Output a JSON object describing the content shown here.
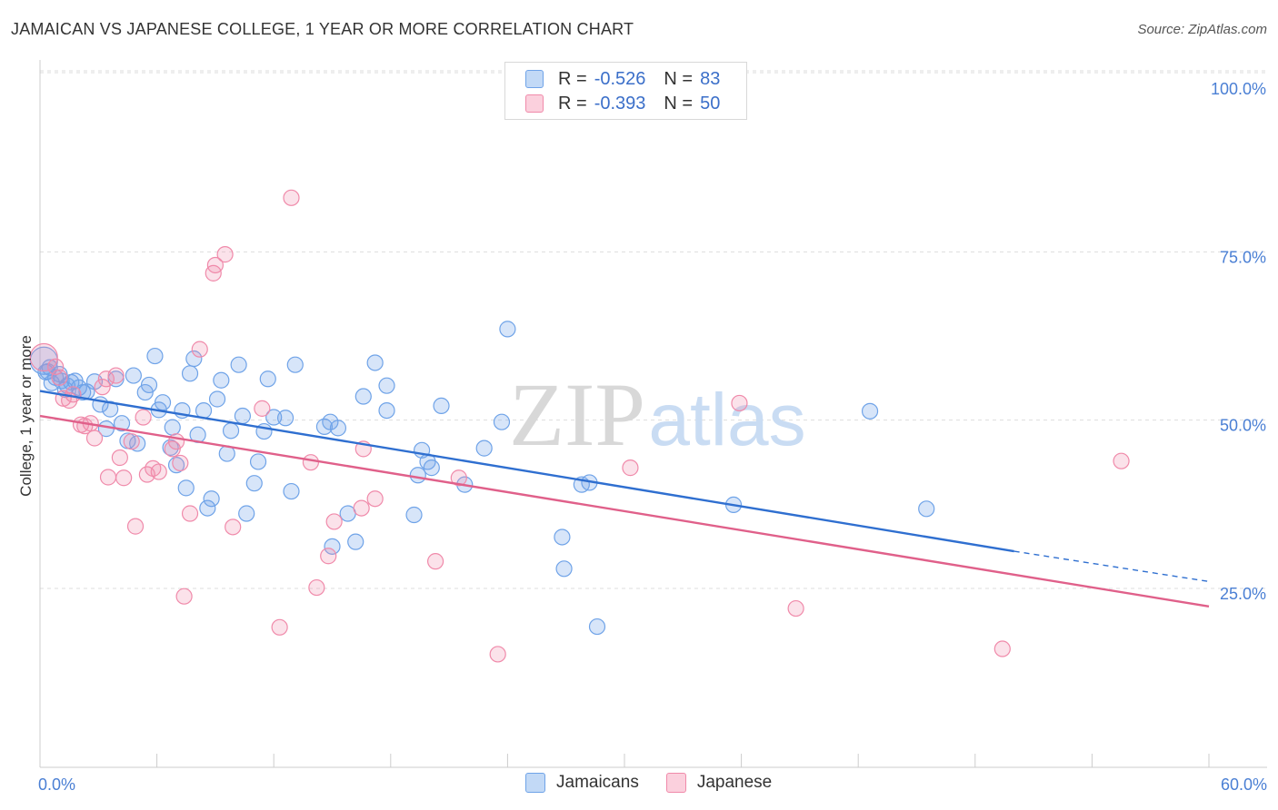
{
  "title": "JAMAICAN VS JAPANESE COLLEGE, 1 YEAR OR MORE CORRELATION CHART",
  "source": "Source: ZipAtlas.com",
  "watermark": {
    "zip": "ZIP",
    "atlas": "atlas"
  },
  "legend_top": [
    {
      "r_label": "R =",
      "r_value": "-0.526",
      "n_label": "N =",
      "n_value": "83",
      "color": "#6fa3e8"
    },
    {
      "r_label": "R =",
      "r_value": "-0.393",
      "n_label": "N =",
      "n_value": "50",
      "color": "#f08aaa"
    }
  ],
  "legend_bottom": [
    {
      "label": "Jamaicans",
      "color": "#6fa3e8"
    },
    {
      "label": "Japanese",
      "color": "#f08aaa"
    }
  ],
  "chart_data": {
    "type": "scatter",
    "title": "JAMAICAN VS JAPANESE COLLEGE, 1 YEAR OR MORE CORRELATION CHART",
    "xlabel": "",
    "ylabel": "College, 1 year or more",
    "xlim": [
      0,
      60
    ],
    "ylim": [
      0,
      105
    ],
    "x_tick_labels": [
      "0.0%",
      "60.0%"
    ],
    "y_ticks": [
      25,
      50,
      75,
      100
    ],
    "y_tick_labels": [
      "25.0%",
      "50.0%",
      "75.0%",
      "100.0%"
    ],
    "grid": "horizontal dashed",
    "legend_placement": "top-center and bottom-center",
    "series": [
      {
        "name": "Jamaicans",
        "color": "#6fa3e8",
        "line_color": "#2f6fd0",
        "trend": {
          "x": [
            0,
            50
          ],
          "y": [
            55.0,
            31.2
          ],
          "dashed_to": [
            60,
            26.7
          ]
        },
        "points": [
          [
            0.2,
            59.5
          ],
          [
            0.3,
            57.8
          ],
          [
            0.5,
            58.5
          ],
          [
            0.6,
            56.2
          ],
          [
            0.8,
            57.0
          ],
          [
            1.0,
            57.5
          ],
          [
            1.1,
            56.5
          ],
          [
            1.3,
            55.2
          ],
          [
            1.6,
            56.3
          ],
          [
            1.8,
            56.5
          ],
          [
            2.0,
            55.5
          ],
          [
            2.2,
            54.8
          ],
          [
            2.4,
            54.9
          ],
          [
            2.8,
            56.4
          ],
          [
            3.1,
            53.0
          ],
          [
            3.4,
            49.4
          ],
          [
            3.6,
            52.3
          ],
          [
            3.9,
            56.8
          ],
          [
            4.2,
            50.2
          ],
          [
            4.5,
            47.6
          ],
          [
            4.8,
            57.3
          ],
          [
            5.0,
            47.2
          ],
          [
            5.4,
            54.8
          ],
          [
            5.6,
            55.9
          ],
          [
            5.9,
            60.2
          ],
          [
            6.1,
            52.2
          ],
          [
            6.3,
            53.3
          ],
          [
            6.7,
            46.6
          ],
          [
            6.8,
            49.6
          ],
          [
            7.0,
            44.0
          ],
          [
            7.3,
            52.1
          ],
          [
            7.5,
            40.6
          ],
          [
            7.7,
            57.6
          ],
          [
            7.9,
            59.8
          ],
          [
            8.1,
            48.5
          ],
          [
            8.4,
            52.1
          ],
          [
            8.6,
            37.6
          ],
          [
            8.8,
            39.0
          ],
          [
            9.1,
            53.8
          ],
          [
            9.3,
            56.6
          ],
          [
            9.6,
            45.7
          ],
          [
            9.8,
            49.1
          ],
          [
            10.2,
            58.9
          ],
          [
            10.4,
            51.3
          ],
          [
            10.6,
            36.8
          ],
          [
            11.0,
            41.3
          ],
          [
            11.2,
            44.5
          ],
          [
            11.5,
            49.0
          ],
          [
            11.7,
            56.8
          ],
          [
            12.0,
            51.1
          ],
          [
            12.6,
            51.0
          ],
          [
            12.9,
            40.1
          ],
          [
            13.1,
            58.9
          ],
          [
            14.6,
            49.7
          ],
          [
            14.9,
            50.4
          ],
          [
            15.0,
            31.9
          ],
          [
            15.3,
            49.5
          ],
          [
            15.8,
            36.8
          ],
          [
            16.2,
            32.6
          ],
          [
            16.6,
            54.2
          ],
          [
            17.2,
            59.2
          ],
          [
            17.8,
            55.8
          ],
          [
            17.8,
            52.1
          ],
          [
            19.2,
            36.6
          ],
          [
            19.4,
            42.5
          ],
          [
            19.6,
            46.2
          ],
          [
            19.9,
            44.5
          ],
          [
            20.1,
            43.6
          ],
          [
            20.6,
            52.8
          ],
          [
            21.8,
            41.1
          ],
          [
            22.8,
            46.5
          ],
          [
            23.7,
            50.4
          ],
          [
            24.0,
            64.2
          ],
          [
            26.8,
            33.3
          ],
          [
            26.9,
            28.6
          ],
          [
            27.8,
            41.1
          ],
          [
            28.2,
            41.4
          ],
          [
            28.6,
            20.0
          ],
          [
            35.6,
            38.1
          ],
          [
            42.6,
            52.0
          ],
          [
            45.5,
            37.5
          ],
          [
            1.4,
            55.8
          ],
          [
            0.4,
            57.9
          ]
        ],
        "large_point": [
          0.2,
          59.5
        ]
      },
      {
        "name": "Japanese",
        "color": "#f08aaa",
        "line_color": "#e0608a",
        "trend": {
          "x": [
            0,
            60
          ],
          "y": [
            51.3,
            23.0
          ]
        },
        "points": [
          [
            0.2,
            60.0
          ],
          [
            0.8,
            58.6
          ],
          [
            1.0,
            57.0
          ],
          [
            1.2,
            53.9
          ],
          [
            1.5,
            53.6
          ],
          [
            1.7,
            54.5
          ],
          [
            2.1,
            50.0
          ],
          [
            2.3,
            49.8
          ],
          [
            2.6,
            50.2
          ],
          [
            2.8,
            48.0
          ],
          [
            3.2,
            55.6
          ],
          [
            3.5,
            42.2
          ],
          [
            3.9,
            57.3
          ],
          [
            4.1,
            45.1
          ],
          [
            4.3,
            42.1
          ],
          [
            4.7,
            47.5
          ],
          [
            4.9,
            34.9
          ],
          [
            5.3,
            51.1
          ],
          [
            5.5,
            42.6
          ],
          [
            5.8,
            43.5
          ],
          [
            6.1,
            43.0
          ],
          [
            6.8,
            46.4
          ],
          [
            7.0,
            47.5
          ],
          [
            7.2,
            44.3
          ],
          [
            7.4,
            24.5
          ],
          [
            7.7,
            36.8
          ],
          [
            8.2,
            61.2
          ],
          [
            8.9,
            72.5
          ],
          [
            9.0,
            73.7
          ],
          [
            9.5,
            75.3
          ],
          [
            9.9,
            34.8
          ],
          [
            11.4,
            52.4
          ],
          [
            12.3,
            19.9
          ],
          [
            12.9,
            83.7
          ],
          [
            13.9,
            44.4
          ],
          [
            14.2,
            25.8
          ],
          [
            14.8,
            30.5
          ],
          [
            15.1,
            35.6
          ],
          [
            16.5,
            37.6
          ],
          [
            16.6,
            46.4
          ],
          [
            17.2,
            39.0
          ],
          [
            20.3,
            29.7
          ],
          [
            21.5,
            42.1
          ],
          [
            23.5,
            15.9
          ],
          [
            30.3,
            43.6
          ],
          [
            35.9,
            53.2
          ],
          [
            38.8,
            22.7
          ],
          [
            49.4,
            16.7
          ],
          [
            55.5,
            44.6
          ],
          [
            3.4,
            56.8
          ]
        ],
        "large_point": [
          0.2,
          60.0
        ]
      }
    ]
  }
}
